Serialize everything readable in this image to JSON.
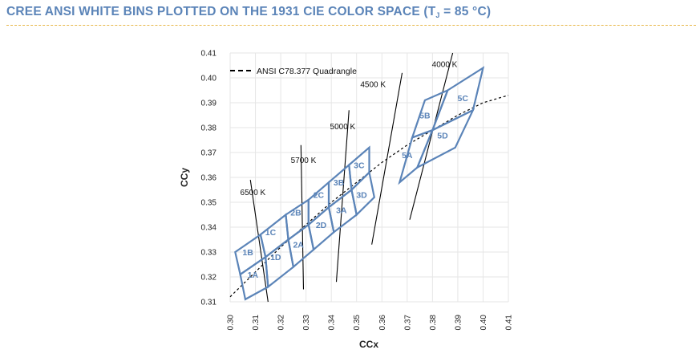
{
  "header": {
    "title_main": "CREE ANSI WHITE BINS PLOTTED ON THE 1931 CIE COLOR SPACE (T",
    "title_sub": "J",
    "title_end": " = 85 °C)"
  },
  "colors": {
    "title": "#5b84b8",
    "accent_rule": "#e8b84a",
    "bin_outline": "#5b84b8",
    "bin_label": "#5b84b8",
    "lines": "#000000",
    "grid": "#e6e6e6"
  },
  "chart_data": {
    "type": "scatter",
    "xlabel": "CCx",
    "ylabel": "CCy",
    "xlim": [
      0.3,
      0.41
    ],
    "ylim": [
      0.31,
      0.41
    ],
    "grid": true,
    "x_ticks": [
      "0.30",
      "0.31",
      "0.32",
      "0.33",
      "0.34",
      "0.35",
      "0.36",
      "0.37",
      "0.38",
      "0.39",
      "0.40",
      "0.41"
    ],
    "y_ticks": [
      "0.31",
      "0.32",
      "0.33",
      "0.34",
      "0.35",
      "0.36",
      "0.37",
      "0.38",
      "0.39",
      "0.40",
      "0.41"
    ],
    "legend": {
      "label": "ANSI C78.377 Quadrangle",
      "placement": "top-left"
    },
    "bins": [
      {
        "name": "1A",
        "points": [
          [
            0.304,
            0.321
          ],
          [
            0.314,
            0.328
          ],
          [
            0.315,
            0.316
          ],
          [
            0.306,
            0.311
          ]
        ]
      },
      {
        "name": "1B",
        "points": [
          [
            0.302,
            0.33
          ],
          [
            0.312,
            0.337
          ],
          [
            0.314,
            0.328
          ],
          [
            0.304,
            0.321
          ]
        ]
      },
      {
        "name": "1C",
        "points": [
          [
            0.312,
            0.337
          ],
          [
            0.322,
            0.345
          ],
          [
            0.323,
            0.335
          ],
          [
            0.314,
            0.328
          ]
        ]
      },
      {
        "name": "1D",
        "points": [
          [
            0.314,
            0.328
          ],
          [
            0.323,
            0.335
          ],
          [
            0.325,
            0.324
          ],
          [
            0.315,
            0.316
          ]
        ]
      },
      {
        "name": "2A",
        "points": [
          [
            0.323,
            0.335
          ],
          [
            0.331,
            0.341
          ],
          [
            0.333,
            0.331
          ],
          [
            0.325,
            0.324
          ]
        ]
      },
      {
        "name": "2B",
        "points": [
          [
            0.322,
            0.345
          ],
          [
            0.331,
            0.351
          ],
          [
            0.331,
            0.341
          ],
          [
            0.323,
            0.335
          ]
        ]
      },
      {
        "name": "2C",
        "points": [
          [
            0.331,
            0.351
          ],
          [
            0.339,
            0.358
          ],
          [
            0.339,
            0.348
          ],
          [
            0.331,
            0.341
          ]
        ]
      },
      {
        "name": "2D",
        "points": [
          [
            0.331,
            0.341
          ],
          [
            0.339,
            0.348
          ],
          [
            0.341,
            0.338
          ],
          [
            0.333,
            0.331
          ]
        ]
      },
      {
        "name": "3A",
        "points": [
          [
            0.339,
            0.348
          ],
          [
            0.348,
            0.355
          ],
          [
            0.35,
            0.345
          ],
          [
            0.341,
            0.338
          ]
        ]
      },
      {
        "name": "3B",
        "points": [
          [
            0.339,
            0.358
          ],
          [
            0.347,
            0.365
          ],
          [
            0.348,
            0.355
          ],
          [
            0.339,
            0.348
          ]
        ]
      },
      {
        "name": "3C",
        "points": [
          [
            0.347,
            0.365
          ],
          [
            0.355,
            0.372
          ],
          [
            0.355,
            0.362
          ],
          [
            0.348,
            0.355
          ]
        ]
      },
      {
        "name": "3D",
        "points": [
          [
            0.348,
            0.355
          ],
          [
            0.355,
            0.362
          ],
          [
            0.357,
            0.352
          ],
          [
            0.35,
            0.345
          ]
        ]
      },
      {
        "name": "5A",
        "points": [
          [
            0.367,
            0.358
          ],
          [
            0.372,
            0.376
          ],
          [
            0.38,
            0.379
          ],
          [
            0.374,
            0.364
          ]
        ]
      },
      {
        "name": "5B",
        "points": [
          [
            0.372,
            0.376
          ],
          [
            0.377,
            0.391
          ],
          [
            0.386,
            0.395
          ],
          [
            0.38,
            0.379
          ]
        ]
      },
      {
        "name": "5C",
        "points": [
          [
            0.386,
            0.395
          ],
          [
            0.4,
            0.404
          ],
          [
            0.396,
            0.387
          ],
          [
            0.38,
            0.379
          ]
        ]
      },
      {
        "name": "5D",
        "points": [
          [
            0.38,
            0.379
          ],
          [
            0.396,
            0.387
          ],
          [
            0.389,
            0.372
          ],
          [
            0.374,
            0.364
          ]
        ]
      }
    ],
    "bin_label_positions": [
      {
        "name": "1A",
        "at": [
          0.309,
          0.321
        ]
      },
      {
        "name": "1B",
        "at": [
          0.307,
          0.33
        ]
      },
      {
        "name": "1C",
        "at": [
          0.316,
          0.338
        ]
      },
      {
        "name": "1D",
        "at": [
          0.318,
          0.328
        ]
      },
      {
        "name": "2A",
        "at": [
          0.327,
          0.333
        ]
      },
      {
        "name": "2B",
        "at": [
          0.326,
          0.346
        ]
      },
      {
        "name": "2C",
        "at": [
          0.335,
          0.353
        ]
      },
      {
        "name": "2D",
        "at": [
          0.336,
          0.341
        ]
      },
      {
        "name": "3A",
        "at": [
          0.344,
          0.347
        ]
      },
      {
        "name": "3B",
        "at": [
          0.343,
          0.358
        ]
      },
      {
        "name": "3C",
        "at": [
          0.351,
          0.365
        ]
      },
      {
        "name": "3D",
        "at": [
          0.352,
          0.353
        ]
      },
      {
        "name": "5A",
        "at": [
          0.37,
          0.369
        ]
      },
      {
        "name": "5B",
        "at": [
          0.377,
          0.385
        ]
      },
      {
        "name": "5C",
        "at": [
          0.392,
          0.392
        ]
      },
      {
        "name": "5D",
        "at": [
          0.384,
          0.377
        ]
      }
    ],
    "cct_lines": [
      {
        "label": "6500 K",
        "from": [
          0.308,
          0.359
        ],
        "to": [
          0.315,
          0.31
        ],
        "label_at": [
          0.309,
          0.354
        ]
      },
      {
        "label": "5700 K",
        "from": [
          0.328,
          0.373
        ],
        "to": [
          0.329,
          0.315
        ],
        "label_at": [
          0.329,
          0.367
        ]
      },
      {
        "name": "5000 K",
        "label": "5000 K",
        "from": [
          0.347,
          0.387
        ],
        "to": [
          0.342,
          0.318
        ],
        "label_at": [
          0.3445,
          0.3805
        ]
      },
      {
        "label": "4500 K",
        "from": [
          0.368,
          0.402
        ],
        "to": [
          0.356,
          0.333
        ],
        "label_at": [
          0.3565,
          0.3975
        ]
      },
      {
        "label": "4000 K",
        "from": [
          0.388,
          0.41
        ],
        "to": [
          0.371,
          0.343
        ],
        "label_at": [
          0.3848,
          0.4055
        ]
      }
    ],
    "planckian_locus": [
      [
        0.3,
        0.312
      ],
      [
        0.31,
        0.322
      ],
      [
        0.32,
        0.332
      ],
      [
        0.33,
        0.341
      ],
      [
        0.34,
        0.35
      ],
      [
        0.35,
        0.358
      ],
      [
        0.36,
        0.366
      ],
      [
        0.37,
        0.373
      ],
      [
        0.38,
        0.379
      ],
      [
        0.39,
        0.385
      ],
      [
        0.4,
        0.39
      ],
      [
        0.41,
        0.393
      ]
    ]
  }
}
